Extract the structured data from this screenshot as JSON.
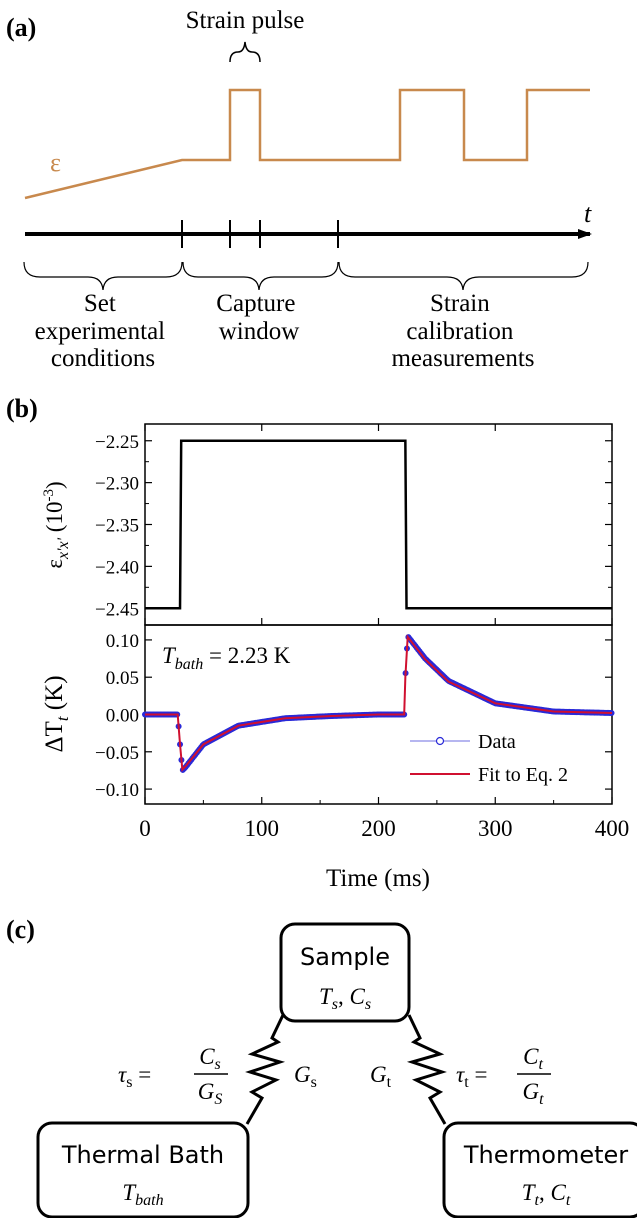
{
  "panel_a": {
    "label": "(a)",
    "strain_pulse_label": "Strain pulse",
    "epsilon_symbol": "ε",
    "t_symbol": "t",
    "segments": [
      {
        "lines": [
          "Set",
          "experimental",
          "conditions"
        ]
      },
      {
        "lines": [
          "Capture",
          "window"
        ]
      },
      {
        "lines": [
          "Strain",
          "calibration",
          "measurements"
        ]
      }
    ],
    "colors": {
      "strain_trace": "#c8894d",
      "axis": "#000000"
    }
  },
  "panel_b": {
    "label": "(b)",
    "top_ylabel": "ε",
    "top_ylabel_sub": "x'x'",
    "top_ylabel_unit": " (10",
    "top_ylabel_exp": "-3",
    "top_ylabel_close": ")",
    "bottom_ylabel": "ΔT",
    "bottom_ylabel_sub": "t",
    "bottom_ylabel_unit": " (K)",
    "xlabel": "Time (ms)",
    "annotation_T": "T",
    "annotation_sub": "bath",
    "annotation_value": " = 2.23 K",
    "legend": [
      "Data",
      "Fit to Eq. 2"
    ],
    "colors": {
      "data": "#2a2ad8",
      "fit": "#d01030",
      "strain": "#000000"
    }
  },
  "chart_data": [
    {
      "type": "line",
      "x": [
        0,
        30,
        31,
        223,
        224,
        400
      ],
      "y": [
        -2.45,
        -2.45,
        -2.25,
        -2.25,
        -2.45,
        -2.45
      ],
      "xlim": [
        0,
        400
      ],
      "ylim": [
        -2.47,
        -2.23
      ],
      "yticks": [
        -2.25,
        -2.3,
        -2.35,
        -2.4,
        -2.45
      ],
      "ytick_labels": [
        "−2.25",
        "−2.30",
        "−2.35",
        "−2.40",
        "−2.45"
      ],
      "xlabel": "",
      "ylabel": "ε x'x' (10^-3)"
    },
    {
      "type": "line",
      "series": [
        {
          "name": "Data",
          "x": [
            0,
            28,
            30,
            32,
            35,
            50,
            80,
            120,
            160,
            200,
            222,
            223,
            225,
            240,
            260,
            300,
            350,
            400
          ],
          "y": [
            0.0,
            0.0,
            -0.04,
            -0.075,
            -0.07,
            -0.04,
            -0.015,
            -0.005,
            -0.002,
            0.0,
            0.0,
            0.05,
            0.105,
            0.075,
            0.045,
            0.015,
            0.004,
            0.002
          ]
        },
        {
          "name": "Fit to Eq. 2",
          "x": [
            0,
            28,
            30,
            32,
            35,
            50,
            80,
            120,
            160,
            200,
            222,
            223,
            225,
            240,
            260,
            300,
            350,
            400
          ],
          "y": [
            0.0,
            0.0,
            -0.04,
            -0.074,
            -0.069,
            -0.04,
            -0.015,
            -0.005,
            -0.002,
            0.0,
            0.0,
            0.05,
            0.104,
            0.074,
            0.044,
            0.015,
            0.004,
            0.002
          ]
        }
      ],
      "xlim": [
        0,
        400
      ],
      "ylim": [
        -0.12,
        0.12
      ],
      "xticks": [
        0,
        100,
        200,
        300,
        400
      ],
      "xtick_labels": [
        "0",
        "100",
        "200",
        "300",
        "400"
      ],
      "yticks": [
        0.1,
        0.05,
        0.0,
        -0.05,
        -0.1
      ],
      "ytick_labels": [
        "0.10",
        "0.05",
        "0.00",
        "−0.05",
        "−0.10"
      ],
      "xlabel": "Time (ms)",
      "ylabel": "ΔT t (K)",
      "legend": "bottom-right"
    }
  ],
  "panel_c": {
    "label": "(c)",
    "sample": {
      "title": "Sample",
      "line2_T": "T",
      "line2_Ts": "s",
      "line2_C": "C",
      "line2_Cs": "s",
      "sep": ", "
    },
    "bath": {
      "title": "Thermal Bath",
      "T": "T",
      "sub": "bath"
    },
    "thermometer": {
      "title": "Thermometer",
      "T": "T",
      "Tsub": "t",
      "C": "C",
      "Csub": "t",
      "sep": ", "
    },
    "tau_s": {
      "tau": "τ",
      "sub": "s",
      "eq": " = ",
      "num": "C",
      "num_sub": "s",
      "den": "G",
      "den_sub": "S"
    },
    "tau_t": {
      "tau": "τ",
      "sub": "t",
      "eq": " = ",
      "num": "C",
      "num_sub": "t",
      "den": "G",
      "den_sub": "t"
    },
    "G_s": {
      "G": "G",
      "sub": "s"
    },
    "G_t": {
      "G": "G",
      "sub": "t"
    }
  }
}
